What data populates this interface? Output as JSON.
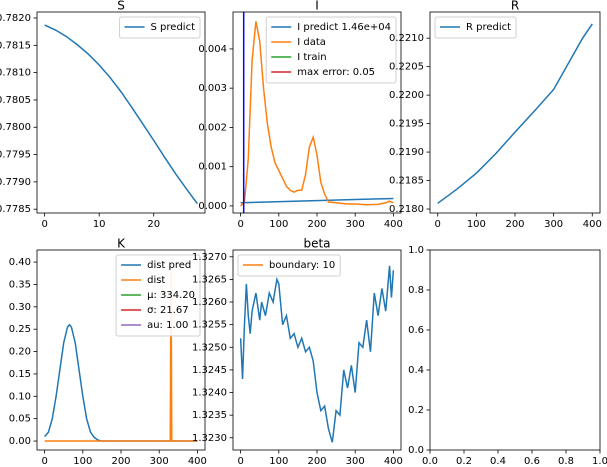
{
  "chart_data": [
    {
      "type": "line",
      "title": "S",
      "legend": "upper right",
      "xlim": [
        -1.4,
        29.4
      ],
      "xticks": [
        0,
        10,
        20
      ],
      "ylim": [
        0.77843,
        0.78211
      ],
      "yticks": [
        {
          "value": 0.7785,
          "label": "0.7785"
        },
        {
          "value": 0.779,
          "label": "0.7790"
        },
        {
          "value": 0.7795,
          "label": "0.7795"
        },
        {
          "value": 0.78,
          "label": "0.7800"
        },
        {
          "value": 0.7805,
          "label": "0.7805"
        },
        {
          "value": 0.781,
          "label": "0.7810"
        },
        {
          "value": 0.7815,
          "label": "0.7815"
        },
        {
          "value": 0.782,
          "label": "0.7820"
        }
      ],
      "series": [
        {
          "name": "S predict",
          "color": "#1f77b4",
          "x": [
            0,
            2,
            4,
            6,
            8,
            10,
            12,
            14,
            16,
            18,
            20,
            22,
            24,
            26,
            28
          ],
          "values": [
            0.78187,
            0.78178,
            0.78166,
            0.78151,
            0.78134,
            0.78114,
            0.78091,
            0.78065,
            0.78036,
            0.78006,
            0.77976,
            0.77945,
            0.77915,
            0.77887,
            0.7786
          ]
        }
      ]
    },
    {
      "type": "line",
      "title": "I",
      "legend": "upper right",
      "xlim": [
        -20,
        420
      ],
      "xticks": [
        0,
        100,
        200,
        300,
        400
      ],
      "ylim": [
        -0.00018,
        0.00494
      ],
      "yticks": [
        {
          "value": 0,
          "label": "0.000"
        },
        {
          "value": 0.001,
          "label": "0.001"
        },
        {
          "value": 0.002,
          "label": "0.002"
        },
        {
          "value": 0.003,
          "label": "0.003"
        },
        {
          "value": 0.004,
          "label": "0.004"
        }
      ],
      "vlines": [
        {
          "x": 8,
          "color": "#0000ff"
        }
      ],
      "series": [
        {
          "name": "I predict 1.46e+04",
          "color": "#1f77b4",
          "x": [
            0,
            400
          ],
          "values": [
            8e-05,
            0.00019
          ]
        },
        {
          "name": "I data",
          "color": "#ff7f0e",
          "x": [
            0,
            10,
            20,
            30,
            40,
            50,
            60,
            70,
            80,
            90,
            100,
            110,
            120,
            130,
            140,
            150,
            160,
            170,
            180,
            190,
            200,
            210,
            220,
            230,
            250,
            280,
            300,
            330,
            360,
            380,
            390,
            400
          ],
          "values": [
            0,
            0.0001,
            0.0012,
            0.0037,
            0.0047,
            0.0042,
            0.003,
            0.0021,
            0.0015,
            0.0011,
            0.0009,
            0.0007,
            0.0005,
            0.0004,
            0.00035,
            0.0004,
            0.0004,
            0.0008,
            0.0015,
            0.00175,
            0.0013,
            0.0006,
            0.0003,
            0.0001,
            8e-05,
            5e-05,
            5e-05,
            3e-05,
            4e-05,
            8e-05,
            0.00012,
            8e-05
          ]
        },
        {
          "name": "I train",
          "color": "#2ca02c",
          "x": [],
          "values": []
        },
        {
          "name": "max error: 0.05",
          "color": "#d62728",
          "x": [],
          "values": []
        }
      ]
    },
    {
      "type": "line",
      "title": "R",
      "legend": "upper left",
      "xlim": [
        -20,
        420
      ],
      "xticks": [
        0,
        100,
        200,
        300,
        400
      ],
      "ylim": [
        0.21793,
        0.22146
      ],
      "yticks": [
        {
          "value": 0.218,
          "label": "0.2180"
        },
        {
          "value": 0.2185,
          "label": "0.2185"
        },
        {
          "value": 0.219,
          "label": "0.2190"
        },
        {
          "value": 0.2195,
          "label": "0.2195"
        },
        {
          "value": 0.22,
          "label": "0.2200"
        },
        {
          "value": 0.2205,
          "label": "0.2205"
        },
        {
          "value": 0.221,
          "label": "0.2210"
        }
      ],
      "series": [
        {
          "name": "R predict",
          "color": "#1f77b4",
          "x": [
            0,
            50,
            100,
            150,
            200,
            250,
            300,
            350,
            375,
            400
          ],
          "values": [
            0.2181,
            0.21835,
            0.21863,
            0.21897,
            0.21935,
            0.21972,
            0.2201,
            0.2207,
            0.221,
            0.22125
          ]
        }
      ]
    },
    {
      "type": "line",
      "title": "K",
      "legend": "upper right",
      "xlim": [
        -20,
        420
      ],
      "xticks": [
        0,
        100,
        200,
        300,
        400
      ],
      "ylim": [
        -0.02,
        0.427
      ],
      "yticks": [
        {
          "value": 0,
          "label": "0.00"
        },
        {
          "value": 0.05,
          "label": "0.05"
        },
        {
          "value": 0.1,
          "label": "0.10"
        },
        {
          "value": 0.15,
          "label": "0.15"
        },
        {
          "value": 0.2,
          "label": "0.20"
        },
        {
          "value": 0.25,
          "label": "0.25"
        },
        {
          "value": 0.3,
          "label": "0.30"
        },
        {
          "value": 0.35,
          "label": "0.35"
        },
        {
          "value": 0.4,
          "label": "0.40"
        }
      ],
      "series": [
        {
          "name": "dist pred",
          "color": "#1f77b4",
          "x": [
            0,
            10,
            20,
            30,
            40,
            50,
            60,
            65,
            70,
            80,
            90,
            100,
            110,
            120,
            130,
            140,
            150,
            400
          ],
          "values": [
            0.01,
            0.02,
            0.05,
            0.1,
            0.16,
            0.22,
            0.255,
            0.26,
            0.255,
            0.22,
            0.16,
            0.1,
            0.05,
            0.02,
            0.008,
            0.002,
            0,
            0
          ]
        },
        {
          "name": "dist",
          "color": "#ff7f0e",
          "x": [
            0,
            329,
            331,
            333,
            400
          ],
          "values": [
            0,
            0,
            0.4,
            0,
            0
          ]
        },
        {
          "name": "μ: 334.20",
          "color": "#2ca02c",
          "x": [],
          "values": []
        },
        {
          "name": "σ: 21.67",
          "color": "#d62728",
          "x": [],
          "values": []
        },
        {
          "name": "au: 1.00",
          "color": "#9467bd",
          "x": [],
          "values": []
        }
      ]
    },
    {
      "type": "line",
      "title": "beta",
      "legend": "upper left",
      "xlim": [
        -20,
        420
      ],
      "xticks": [
        0,
        100,
        200,
        300,
        400
      ],
      "ylim": [
        1.32273,
        1.32715
      ],
      "yticks": [
        {
          "value": 1.323,
          "label": "1.3230"
        },
        {
          "value": 1.3235,
          "label": "1.3235"
        },
        {
          "value": 1.324,
          "label": "1.3240"
        },
        {
          "value": 1.3245,
          "label": "1.3245"
        },
        {
          "value": 1.325,
          "label": "1.3250"
        },
        {
          "value": 1.3255,
          "label": "1.3255"
        },
        {
          "value": 1.326,
          "label": "1.3260"
        },
        {
          "value": 1.3265,
          "label": "1.3265"
        },
        {
          "value": 1.327,
          "label": "1.3270"
        }
      ],
      "series": [
        {
          "color": "#1f77b4",
          "x": [
            0,
            5,
            10,
            15,
            20,
            25,
            30,
            40,
            50,
            55,
            65,
            75,
            85,
            95,
            100,
            110,
            120,
            130,
            140,
            150,
            160,
            170,
            180,
            190,
            200,
            210,
            220,
            230,
            240,
            250,
            260,
            270,
            280,
            290,
            300,
            310,
            320,
            330,
            340,
            350,
            360,
            370,
            380,
            390,
            395,
            400
          ],
          "values": [
            1.3252,
            1.3243,
            1.3255,
            1.3264,
            1.3257,
            1.3253,
            1.3258,
            1.3262,
            1.3256,
            1.326,
            1.3257,
            1.3262,
            1.326,
            1.3265,
            1.3264,
            1.3255,
            1.3257,
            1.3252,
            1.3253,
            1.325,
            1.3252,
            1.3249,
            1.325,
            1.3247,
            1.324,
            1.3236,
            1.3237,
            1.3232,
            1.3229,
            1.3236,
            1.3235,
            1.3245,
            1.3241,
            1.3246,
            1.324,
            1.3251,
            1.325,
            1.3256,
            1.3249,
            1.3262,
            1.3257,
            1.3263,
            1.3258,
            1.3268,
            1.3261,
            1.3267
          ]
        },
        {
          "name": "boundary: 10",
          "color": "#ff7f0e",
          "x": [],
          "values": []
        }
      ]
    },
    {
      "type": "line",
      "xlim": [
        0,
        1
      ],
      "xticks": [
        {
          "value": 0,
          "label": "0.0"
        },
        {
          "value": 0.2,
          "label": "0.2"
        },
        {
          "value": 0.4,
          "label": "0.4"
        },
        {
          "value": 0.6,
          "label": "0.6"
        },
        {
          "value": 0.8,
          "label": "0.8"
        },
        {
          "value": 1,
          "label": "1.0"
        }
      ],
      "ylim": [
        0,
        1
      ],
      "yticks": [
        {
          "value": 0,
          "label": "0.0"
        },
        {
          "value": 0.2,
          "label": "0.2"
        },
        {
          "value": 0.4,
          "label": "0.4"
        },
        {
          "value": 0.6,
          "label": "0.6"
        },
        {
          "value": 0.8,
          "label": "0.8"
        },
        {
          "value": 1,
          "label": "1.0"
        }
      ],
      "series": []
    }
  ]
}
